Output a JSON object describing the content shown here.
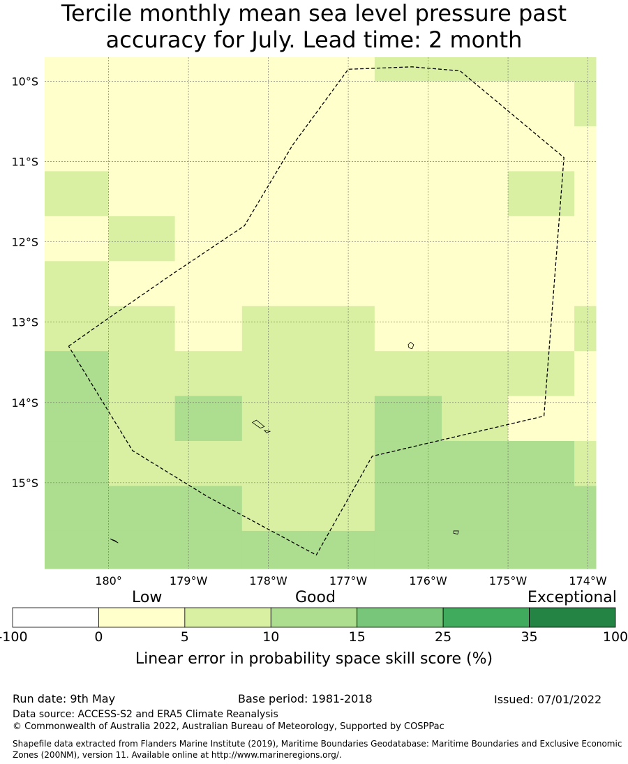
{
  "title_line1": "Tercile monthly mean sea level pressure past",
  "title_line2": "accuracy for July. Lead time: 2 month",
  "map": {
    "lon_range": [
      -180.8,
      -173.9
    ],
    "lat_range": [
      -16.07,
      -9.7
    ],
    "x_ticks": [
      {
        "lon": -180,
        "label": "180°"
      },
      {
        "lon": -179,
        "label": "179°W"
      },
      {
        "lon": -178,
        "label": "178°W"
      },
      {
        "lon": -177,
        "label": "177°W"
      },
      {
        "lon": -176,
        "label": "176°W"
      },
      {
        "lon": -175,
        "label": "175°W"
      },
      {
        "lon": -174,
        "label": "174°W"
      }
    ],
    "y_ticks": [
      {
        "lat": -10,
        "label": "10°S"
      },
      {
        "lat": -11,
        "label": "11°S"
      },
      {
        "lat": -12,
        "label": "12°S"
      },
      {
        "lat": -13,
        "label": "13°S"
      },
      {
        "lat": -14,
        "label": "14°S"
      },
      {
        "lat": -15,
        "label": "15°S"
      }
    ],
    "grid_lon_edges": [
      -180.8,
      -180.0,
      -179.17,
      -178.33,
      -177.5,
      -176.67,
      -175.83,
      -175.0,
      -174.17,
      -173.9
    ],
    "grid_lat_edges": [
      -9.7,
      -10.0,
      -10.56,
      -11.12,
      -11.68,
      -12.24,
      -12.8,
      -13.36,
      -13.92,
      -14.48,
      -15.04,
      -15.6,
      -16.07
    ],
    "category_colors": [
      "#ffffff",
      "#ffffcc",
      "#d9f0a3",
      "#addd8e",
      "#78c679",
      "#41ab5d",
      "#238443"
    ],
    "cells": [
      [
        1,
        1,
        1,
        1,
        1,
        2,
        2,
        2,
        2
      ],
      [
        1,
        1,
        1,
        1,
        1,
        1,
        1,
        1,
        2
      ],
      [
        1,
        1,
        1,
        1,
        1,
        1,
        1,
        1,
        1
      ],
      [
        2,
        1,
        1,
        1,
        1,
        1,
        1,
        2,
        1
      ],
      [
        1,
        2,
        1,
        1,
        1,
        1,
        1,
        1,
        1
      ],
      [
        2,
        1,
        1,
        1,
        1,
        1,
        1,
        1,
        1
      ],
      [
        2,
        2,
        1,
        2,
        2,
        1,
        1,
        1,
        2
      ],
      [
        3,
        2,
        2,
        2,
        2,
        2,
        2,
        2,
        1
      ],
      [
        3,
        2,
        3,
        2,
        2,
        3,
        2,
        1,
        1
      ],
      [
        3,
        2,
        2,
        2,
        2,
        3,
        3,
        3,
        2
      ],
      [
        3,
        3,
        3,
        2,
        2,
        3,
        3,
        3,
        3
      ],
      [
        3,
        3,
        3,
        3,
        3,
        3,
        3,
        3,
        3
      ]
    ],
    "eez_boundary": [
      [
        -180.5,
        -13.3
      ],
      [
        -180.0,
        -12.95
      ],
      [
        -179.2,
        -12.4
      ],
      [
        -178.3,
        -11.8
      ],
      [
        -177.7,
        -10.8
      ],
      [
        -177.0,
        -9.85
      ],
      [
        -176.2,
        -9.82
      ],
      [
        -175.6,
        -9.87
      ],
      [
        -174.3,
        -10.95
      ],
      [
        -174.55,
        -14.17
      ],
      [
        -176.7,
        -14.67
      ],
      [
        -177.4,
        -15.9
      ],
      [
        -178.75,
        -15.18
      ],
      [
        -179.7,
        -14.6
      ],
      [
        -180.5,
        -13.3
      ]
    ],
    "islands": [
      [
        [
          -176.22,
          -13.25
        ],
        [
          -176.18,
          -13.28
        ],
        [
          -176.2,
          -13.33
        ],
        [
          -176.24,
          -13.32
        ],
        [
          -176.25,
          -13.28
        ]
      ],
      [
        [
          -178.2,
          -14.25
        ],
        [
          -178.1,
          -14.32
        ],
        [
          -178.05,
          -14.3
        ],
        [
          -178.15,
          -14.22
        ]
      ],
      [
        [
          -178.05,
          -14.35
        ],
        [
          -177.98,
          -14.36
        ],
        [
          -178.02,
          -14.38
        ]
      ],
      [
        [
          -175.68,
          -15.6
        ],
        [
          -175.62,
          -15.6
        ],
        [
          -175.63,
          -15.64
        ],
        [
          -175.68,
          -15.63
        ]
      ],
      [
        [
          -179.98,
          -15.7
        ],
        [
          -179.88,
          -15.75
        ],
        [
          -179.92,
          -15.72
        ]
      ]
    ]
  },
  "colorbar": {
    "category_labels": [
      "Low",
      "Good",
      "Exceptional"
    ],
    "boundaries": [
      "-100",
      "0",
      "5",
      "10",
      "15",
      "25",
      "35",
      "100"
    ],
    "colors": [
      "#ffffff",
      "#ffffcc",
      "#d9f0a3",
      "#addd8e",
      "#78c679",
      "#41ab5d",
      "#238443"
    ],
    "title": "Linear error in probability space skill score (%)"
  },
  "footer": {
    "run_date": "Run date: 9th May",
    "base_period": "Base period: 1981-2018",
    "issued": "Issued: 07/01/2022",
    "data_source": "Data source: ACCESS-S2 and ERA5 Climate Reanalysis",
    "copyright": "© Commonwealth of Australia 2022, Australian Bureau of Meteorology, Supported by COSPPac",
    "shapefile": "Shapefile data extracted from Flanders Marine Institute (2019), Maritime Boundaries Geodatabase: Maritime Boundaries and Exclusive Economic Zones (200NM), version 11. Available online at http://www.marineregions.org/."
  }
}
